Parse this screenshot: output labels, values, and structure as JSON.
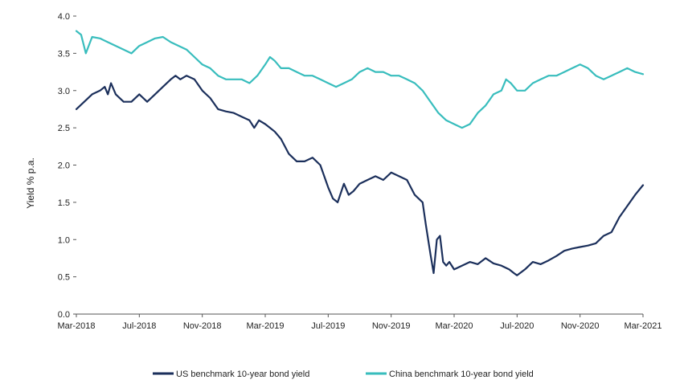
{
  "chart_data": {
    "type": "line",
    "title": "",
    "xlabel": "",
    "ylabel": "Yield % p.a.",
    "ylim": [
      0,
      4
    ],
    "y_ticks": [
      0.0,
      0.5,
      1.0,
      1.5,
      2.0,
      2.5,
      3.0,
      3.5,
      4.0
    ],
    "y_tick_labels": [
      "0.0",
      "0.5",
      "1.0",
      "1.5",
      "2.0",
      "2.5",
      "3.0",
      "3.5",
      "4.0"
    ],
    "xlim": [
      0,
      36
    ],
    "x_ticks": [
      0,
      4,
      8,
      12,
      16,
      20,
      24,
      28,
      32,
      36
    ],
    "x_tick_labels": [
      "Mar-2018",
      "Jul-2018",
      "Nov-2018",
      "Mar-2019",
      "Jul-2019",
      "Nov-2019",
      "Mar-2020",
      "Jul-2020",
      "Nov-2020",
      "Mar-2021"
    ],
    "x_unit": "months since Mar-2018",
    "grid": false,
    "legend_position": "bottom-center",
    "series": [
      {
        "name": "US benchmark 10-year bond yield",
        "color": "#1b2f5b",
        "x": [
          0,
          0.5,
          1,
          1.5,
          1.8,
          2,
          2.2,
          2.5,
          3,
          3.5,
          4,
          4.5,
          5,
          5.5,
          6,
          6.3,
          6.6,
          7,
          7.5,
          8,
          8.5,
          9,
          9.5,
          10,
          10.5,
          11,
          11.3,
          11.6,
          12,
          12.3,
          12.6,
          13,
          13.5,
          14,
          14.5,
          15,
          15.5,
          16,
          16.3,
          16.6,
          17,
          17.3,
          17.6,
          18,
          18.5,
          19,
          19.5,
          20,
          20.5,
          21,
          21.5,
          22,
          22.2,
          22.5,
          22.7,
          22.9,
          23.1,
          23.3,
          23.5,
          23.7,
          24,
          24.5,
          25,
          25.5,
          26,
          26.5,
          27,
          27.5,
          27.8,
          28,
          28.5,
          29,
          29.5,
          30,
          30.5,
          31,
          31.5,
          32,
          32.5,
          33,
          33.5,
          34,
          34.5,
          35,
          35.5,
          36
        ],
        "y": [
          2.75,
          2.85,
          2.95,
          3.0,
          3.05,
          2.95,
          3.1,
          2.95,
          2.85,
          2.85,
          2.95,
          2.85,
          2.95,
          3.05,
          3.15,
          3.2,
          3.15,
          3.2,
          3.15,
          3.0,
          2.9,
          2.75,
          2.72,
          2.7,
          2.65,
          2.6,
          2.5,
          2.6,
          2.55,
          2.5,
          2.45,
          2.35,
          2.15,
          2.05,
          2.05,
          2.1,
          2.0,
          1.7,
          1.55,
          1.5,
          1.75,
          1.6,
          1.65,
          1.75,
          1.8,
          1.85,
          1.8,
          1.9,
          1.85,
          1.8,
          1.6,
          1.5,
          1.2,
          0.8,
          0.55,
          1.0,
          1.05,
          0.7,
          0.65,
          0.7,
          0.6,
          0.65,
          0.7,
          0.67,
          0.75,
          0.68,
          0.65,
          0.6,
          0.55,
          0.52,
          0.6,
          0.7,
          0.67,
          0.72,
          0.78,
          0.85,
          0.88,
          0.9,
          0.92,
          0.95,
          1.05,
          1.1,
          1.3,
          1.45,
          1.6,
          1.73
        ]
      },
      {
        "name": "China benchmark 10-year bond yield",
        "color": "#38bdbd",
        "x": [
          0,
          0.3,
          0.6,
          1,
          1.5,
          2,
          2.5,
          3,
          3.5,
          4,
          4.5,
          5,
          5.5,
          6,
          6.5,
          7,
          7.5,
          8,
          8.5,
          9,
          9.5,
          10,
          10.5,
          11,
          11.5,
          12,
          12.3,
          12.6,
          13,
          13.5,
          14,
          14.5,
          15,
          15.5,
          16,
          16.5,
          17,
          17.5,
          18,
          18.5,
          19,
          19.5,
          20,
          20.5,
          21,
          21.5,
          22,
          22.5,
          23,
          23.5,
          24,
          24.5,
          25,
          25.5,
          26,
          26.5,
          27,
          27.3,
          27.6,
          28,
          28.5,
          29,
          29.5,
          30,
          30.5,
          31,
          31.5,
          32,
          32.5,
          33,
          33.5,
          34,
          34.5,
          35,
          35.5,
          36
        ],
        "y": [
          3.8,
          3.75,
          3.5,
          3.72,
          3.7,
          3.65,
          3.6,
          3.55,
          3.5,
          3.6,
          3.65,
          3.7,
          3.72,
          3.65,
          3.6,
          3.55,
          3.45,
          3.35,
          3.3,
          3.2,
          3.15,
          3.15,
          3.15,
          3.1,
          3.2,
          3.35,
          3.45,
          3.4,
          3.3,
          3.3,
          3.25,
          3.2,
          3.2,
          3.15,
          3.1,
          3.05,
          3.1,
          3.15,
          3.25,
          3.3,
          3.25,
          3.25,
          3.2,
          3.2,
          3.15,
          3.1,
          3.0,
          2.85,
          2.7,
          2.6,
          2.55,
          2.5,
          2.55,
          2.7,
          2.8,
          2.95,
          3.0,
          3.15,
          3.1,
          3.0,
          3.0,
          3.1,
          3.15,
          3.2,
          3.2,
          3.25,
          3.3,
          3.35,
          3.3,
          3.2,
          3.15,
          3.2,
          3.25,
          3.3,
          3.25,
          3.22
        ]
      }
    ]
  }
}
